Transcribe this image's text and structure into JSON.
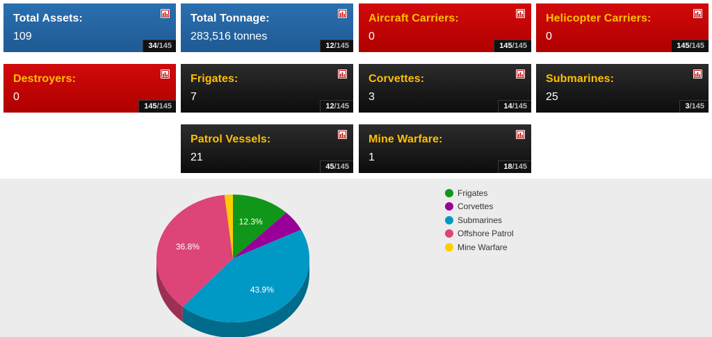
{
  "cards": [
    {
      "label": "Total Assets:",
      "value": "109",
      "rank": "34",
      "total": "/145",
      "theme": "blue"
    },
    {
      "label": "Total Tonnage:",
      "value": "283,516 tonnes",
      "rank": "12",
      "total": "/145",
      "theme": "blue"
    },
    {
      "label": "Aircraft Carriers:",
      "value": "0",
      "rank": "145",
      "total": "/145",
      "theme": "red"
    },
    {
      "label": "Helicopter Carriers:",
      "value": "0",
      "rank": "145",
      "total": "/145",
      "theme": "red"
    },
    {
      "label": "Destroyers:",
      "value": "0",
      "rank": "145",
      "total": "/145",
      "theme": "red"
    },
    {
      "label": "Frigates:",
      "value": "7",
      "rank": "12",
      "total": "/145",
      "theme": "black"
    },
    {
      "label": "Corvettes:",
      "value": "3",
      "rank": "14",
      "total": "/145",
      "theme": "black"
    },
    {
      "label": "Submarines:",
      "value": "25",
      "rank": "3",
      "total": "/145",
      "theme": "black"
    },
    {
      "label": "Patrol Vessels:",
      "value": "21",
      "rank": "45",
      "total": "/145",
      "theme": "black"
    },
    {
      "label": "Mine Warfare:",
      "value": "1",
      "rank": "18",
      "total": "/145",
      "theme": "black"
    }
  ],
  "card_icon": "bar-chart-icon",
  "chart_data": {
    "type": "pie",
    "title": "",
    "three_d": true,
    "legend_position": "top-right",
    "categories": [
      "Frigates",
      "Corvettes",
      "Submarines",
      "Offshore Patrol",
      "Mine Warfare"
    ],
    "values": [
      7,
      3,
      25,
      21,
      1
    ],
    "percent_labels": [
      "12.3%",
      "",
      "43.9%",
      "36.8%",
      ""
    ],
    "colors": [
      "#109618",
      "#990099",
      "#0099c6",
      "#dd4477",
      "#ffcc00"
    ],
    "side_colors": [
      "#0b6a11",
      "#6b006b",
      "#006b8a",
      "#9b3053",
      "#b38f00"
    ]
  },
  "colors": {
    "blue": "#1f5a93",
    "red": "#c00000",
    "black": "#141414",
    "accent_label": "#ffc000",
    "chart_bg": "#ececec"
  }
}
